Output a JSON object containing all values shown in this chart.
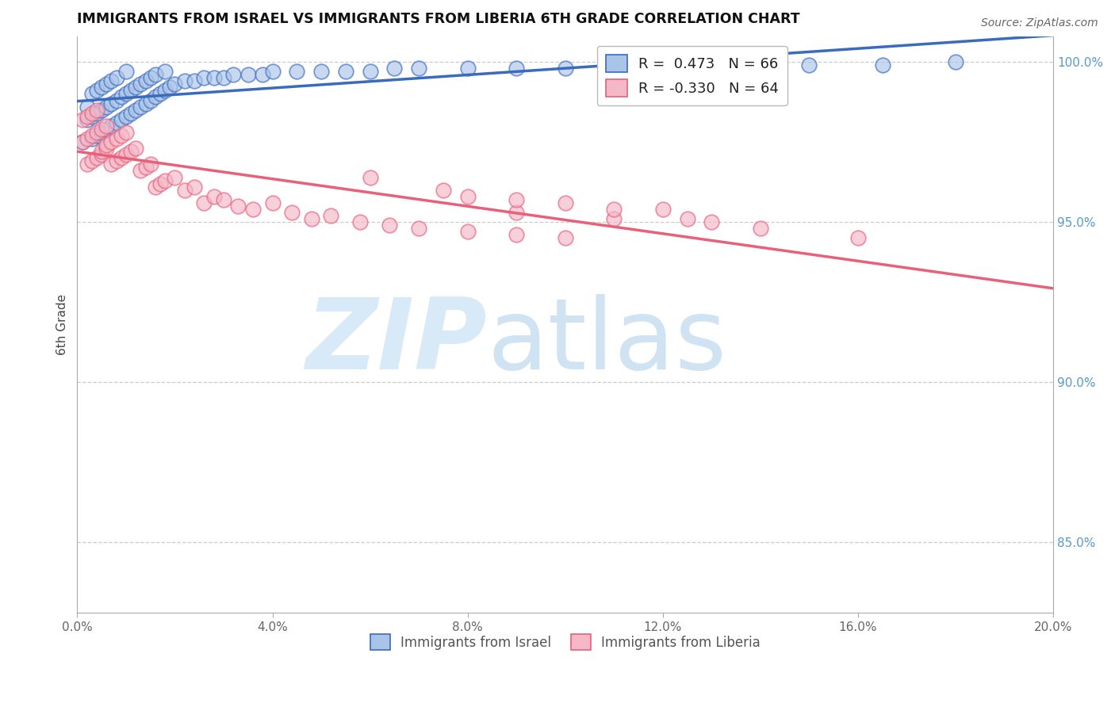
{
  "title": "IMMIGRANTS FROM ISRAEL VS IMMIGRANTS FROM LIBERIA 6TH GRADE CORRELATION CHART",
  "source": "Source: ZipAtlas.com",
  "ylabel": "6th Grade",
  "xlim": [
    0.0,
    0.2
  ],
  "ylim": [
    0.828,
    1.008
  ],
  "israel_R": 0.473,
  "israel_N": 66,
  "liberia_R": -0.33,
  "liberia_N": 64,
  "israel_color": "#aac4e8",
  "liberia_color": "#f4b8c8",
  "israel_line_color": "#3a6bbf",
  "liberia_line_color": "#e8607a",
  "legend_label_israel": "Immigrants from Israel",
  "legend_label_liberia": "Immigrants from Liberia",
  "grid_color": "#cccccc",
  "tick_color": "#aaaaaa",
  "right_tick_color": "#5599cc",
  "israel_points_x": [
    0.001,
    0.002,
    0.002,
    0.003,
    0.003,
    0.003,
    0.004,
    0.004,
    0.004,
    0.005,
    0.005,
    0.005,
    0.006,
    0.006,
    0.006,
    0.007,
    0.007,
    0.007,
    0.008,
    0.008,
    0.008,
    0.009,
    0.009,
    0.01,
    0.01,
    0.01,
    0.011,
    0.011,
    0.012,
    0.012,
    0.013,
    0.013,
    0.014,
    0.014,
    0.015,
    0.015,
    0.016,
    0.016,
    0.017,
    0.018,
    0.018,
    0.019,
    0.02,
    0.022,
    0.024,
    0.026,
    0.028,
    0.03,
    0.032,
    0.035,
    0.038,
    0.04,
    0.045,
    0.05,
    0.055,
    0.06,
    0.065,
    0.07,
    0.08,
    0.09,
    0.1,
    0.11,
    0.13,
    0.15,
    0.165,
    0.18
  ],
  "israel_points_y": [
    0.975,
    0.982,
    0.986,
    0.976,
    0.983,
    0.99,
    0.977,
    0.984,
    0.991,
    0.978,
    0.985,
    0.992,
    0.979,
    0.986,
    0.993,
    0.98,
    0.987,
    0.994,
    0.981,
    0.988,
    0.995,
    0.982,
    0.989,
    0.983,
    0.99,
    0.997,
    0.984,
    0.991,
    0.985,
    0.992,
    0.986,
    0.993,
    0.987,
    0.994,
    0.988,
    0.995,
    0.989,
    0.996,
    0.99,
    0.991,
    0.997,
    0.992,
    0.993,
    0.994,
    0.994,
    0.995,
    0.995,
    0.995,
    0.996,
    0.996,
    0.996,
    0.997,
    0.997,
    0.997,
    0.997,
    0.997,
    0.998,
    0.998,
    0.998,
    0.998,
    0.998,
    0.999,
    0.999,
    0.999,
    0.999,
    1.0
  ],
  "liberia_points_x": [
    0.001,
    0.001,
    0.002,
    0.002,
    0.002,
    0.003,
    0.003,
    0.003,
    0.004,
    0.004,
    0.004,
    0.005,
    0.005,
    0.005,
    0.006,
    0.006,
    0.006,
    0.007,
    0.007,
    0.008,
    0.008,
    0.009,
    0.009,
    0.01,
    0.01,
    0.011,
    0.012,
    0.013,
    0.014,
    0.015,
    0.016,
    0.017,
    0.018,
    0.02,
    0.022,
    0.024,
    0.026,
    0.028,
    0.03,
    0.033,
    0.036,
    0.04,
    0.044,
    0.048,
    0.052,
    0.058,
    0.064,
    0.07,
    0.08,
    0.09,
    0.1,
    0.08,
    0.1,
    0.12,
    0.09,
    0.11,
    0.13,
    0.06,
    0.075,
    0.09,
    0.11,
    0.125,
    0.14,
    0.16
  ],
  "liberia_points_y": [
    0.975,
    0.982,
    0.968,
    0.976,
    0.983,
    0.969,
    0.977,
    0.984,
    0.97,
    0.978,
    0.985,
    0.971,
    0.979,
    0.972,
    0.973,
    0.98,
    0.974,
    0.975,
    0.968,
    0.969,
    0.976,
    0.97,
    0.977,
    0.971,
    0.978,
    0.972,
    0.973,
    0.966,
    0.967,
    0.968,
    0.961,
    0.962,
    0.963,
    0.964,
    0.96,
    0.961,
    0.956,
    0.958,
    0.957,
    0.955,
    0.954,
    0.956,
    0.953,
    0.951,
    0.952,
    0.95,
    0.949,
    0.948,
    0.947,
    0.946,
    0.945,
    0.958,
    0.956,
    0.954,
    0.953,
    0.951,
    0.95,
    0.964,
    0.96,
    0.957,
    0.954,
    0.951,
    0.948,
    0.945
  ]
}
